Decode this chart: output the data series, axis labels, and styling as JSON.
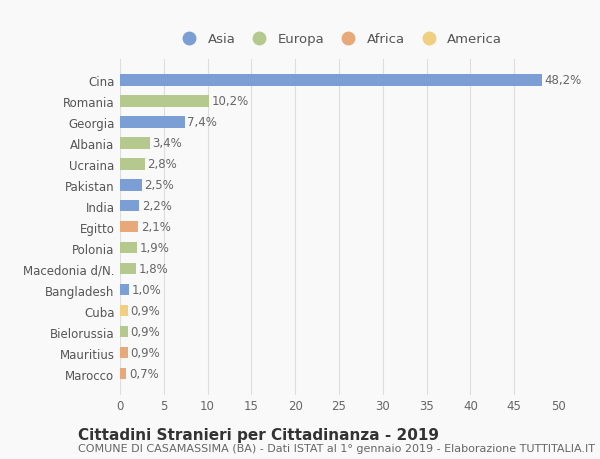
{
  "categories": [
    "Cina",
    "Romania",
    "Georgia",
    "Albania",
    "Ucraina",
    "Pakistan",
    "India",
    "Egitto",
    "Polonia",
    "Macedonia d/N.",
    "Bangladesh",
    "Cuba",
    "Bielorussia",
    "Mauritius",
    "Marocco"
  ],
  "values": [
    48.2,
    10.2,
    7.4,
    3.4,
    2.8,
    2.5,
    2.2,
    2.1,
    1.9,
    1.8,
    1.0,
    0.9,
    0.9,
    0.9,
    0.7
  ],
  "labels": [
    "48,2%",
    "10,2%",
    "7,4%",
    "3,4%",
    "2,8%",
    "2,5%",
    "2,2%",
    "2,1%",
    "1,9%",
    "1,8%",
    "1,0%",
    "0,9%",
    "0,9%",
    "0,9%",
    "0,7%"
  ],
  "continents": [
    "Asia",
    "Europa",
    "Asia",
    "Europa",
    "Europa",
    "Asia",
    "Asia",
    "Africa",
    "Europa",
    "Europa",
    "Asia",
    "America",
    "Europa",
    "Africa",
    "Africa"
  ],
  "continent_colors": {
    "Asia": "#7b9fd4",
    "Europa": "#b5c98e",
    "Africa": "#e8a97a",
    "America": "#f0d080"
  },
  "legend_order": [
    "Asia",
    "Europa",
    "Africa",
    "America"
  ],
  "xlim": [
    0,
    50
  ],
  "xticks": [
    0,
    5,
    10,
    15,
    20,
    25,
    30,
    35,
    40,
    45,
    50
  ],
  "title": "Cittadini Stranieri per Cittadinanza - 2019",
  "subtitle": "COMUNE DI CASAMASSIMA (BA) - Dati ISTAT al 1° gennaio 2019 - Elaborazione TUTTITALIA.IT",
  "background_color": "#f9f9f9",
  "grid_color": "#dddddd",
  "bar_height": 0.55,
  "label_fontsize": 8.5,
  "tick_fontsize": 8.5,
  "title_fontsize": 11,
  "subtitle_fontsize": 8
}
